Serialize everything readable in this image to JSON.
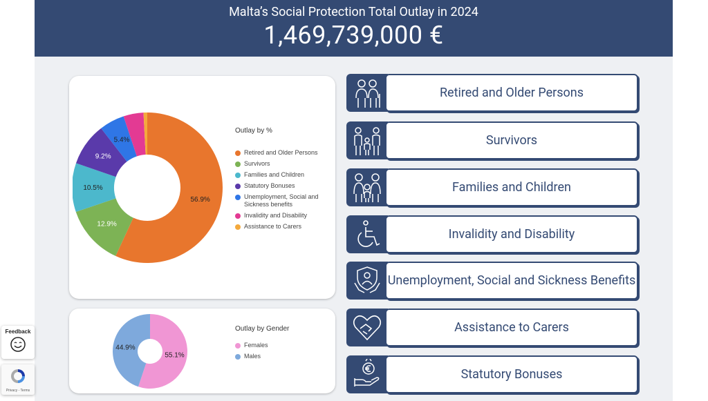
{
  "header": {
    "title": "Malta’s Social Protection Total Outlay in 2024",
    "total": "1,469,739,000 €"
  },
  "chart_data": [
    {
      "type": "pie",
      "title": "Outlay by %",
      "series": [
        {
          "name": "Retired and Older Persons",
          "value": 56.9,
          "label": "56.9%",
          "color": "#e8762d"
        },
        {
          "name": "Survivors",
          "value": 12.9,
          "label": "12.9%",
          "color": "#7db355"
        },
        {
          "name": "Families and Children",
          "value": 10.5,
          "label": "10.5%",
          "color": "#4cb8cc"
        },
        {
          "name": "Statutory Bonuses",
          "value": 9.2,
          "label": "9.2%",
          "color": "#5a3aaa"
        },
        {
          "name": "Unemployment, Social and Sickness benefits",
          "value": 5.4,
          "label": "5.4%",
          "color": "#2f76e6"
        },
        {
          "name": "Invalidity and Disability",
          "value": 4.3,
          "label": "",
          "color": "#e33a93"
        },
        {
          "name": "Assistance to Carers",
          "value": 0.8,
          "label": "",
          "color": "#f4a93c"
        }
      ]
    },
    {
      "type": "pie",
      "title": "Outlay by Gender",
      "series": [
        {
          "name": "Females",
          "value": 55.1,
          "label": "55.1%",
          "color": "#f096d4"
        },
        {
          "name": "Males",
          "value": 44.9,
          "label": "44.9%",
          "color": "#7ea9dc"
        }
      ]
    }
  ],
  "categories": [
    {
      "label": "Retired and Older Persons",
      "icon": "elderly-couple-icon"
    },
    {
      "label": "Survivors",
      "icon": "family-icon"
    },
    {
      "label": "Families and Children",
      "icon": "parents-child-icon"
    },
    {
      "label": "Invalidity and Disability",
      "icon": "wheelchair-icon"
    },
    {
      "label": "Unemployment, Social and Sickness Benefits",
      "icon": "protected-person-icon"
    },
    {
      "label": "Assistance to Carers",
      "icon": "heart-handshake-icon"
    },
    {
      "label": "Statutory Bonuses",
      "icon": "euro-coin-hand-icon"
    }
  ],
  "widgets": {
    "feedback_label": "Feedback",
    "recaptcha_links": "Privacy - Terms"
  }
}
